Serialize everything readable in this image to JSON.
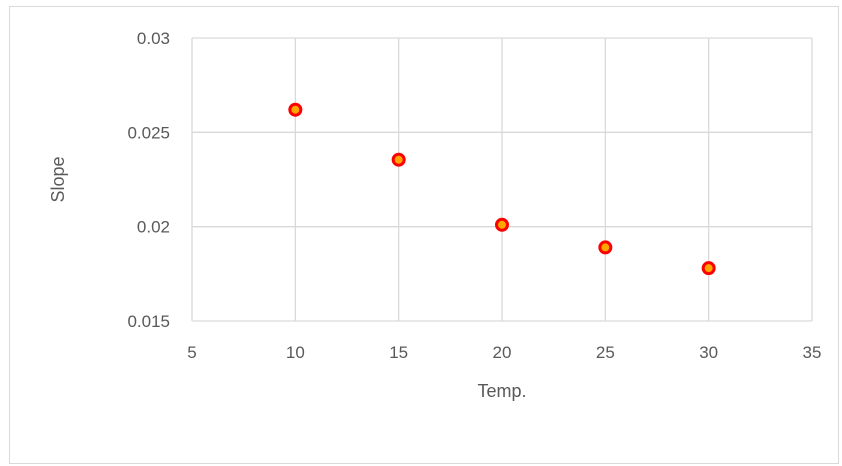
{
  "chart_data": {
    "type": "scatter",
    "title": "",
    "xlabel": "Temp.",
    "ylabel": "Slope",
    "xlim": [
      5,
      35
    ],
    "ylim": [
      0.015,
      0.03
    ],
    "x_ticks": [
      5,
      10,
      15,
      20,
      25,
      30,
      35
    ],
    "y_ticks": [
      0.015,
      0.02,
      0.025,
      0.03
    ],
    "x_tick_labels": [
      "5",
      "10",
      "15",
      "20",
      "25",
      "30",
      "35"
    ],
    "y_tick_labels": [
      "0.015",
      "0.02",
      "0.025",
      "0.03"
    ],
    "grid": true,
    "legend": "none",
    "series": [
      {
        "x": [
          10,
          15,
          20,
          25,
          30
        ],
        "y": [
          0.0262,
          0.02355,
          0.0201,
          0.0189,
          0.0178
        ],
        "marker_fill": "#ffa500",
        "marker_edge": "#ff0000"
      }
    ],
    "colors": {
      "grid": "#d9d9d9",
      "axis_text": "#595959"
    }
  }
}
